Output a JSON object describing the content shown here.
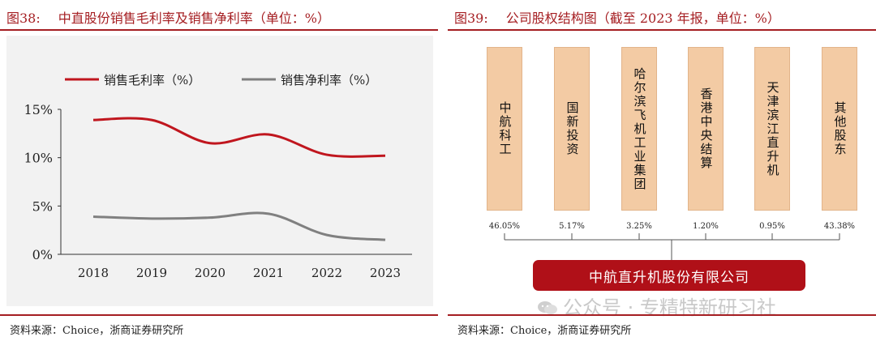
{
  "left_figure": {
    "number": "图38:",
    "title": "中直股份销售毛利率及销售净利率（单位：%）",
    "source": "资料来源：Choice，浙商证券研究所"
  },
  "right_figure": {
    "number": "图39:",
    "title": "公司股权结构图（截至 2023 年报，单位：%）",
    "source": "资料来源：Choice，浙商证券研究所",
    "shareholders": [
      {
        "name": "中航科工",
        "percent": "46.05%"
      },
      {
        "name": "国新投资",
        "percent": "5.17%"
      },
      {
        "name": "哈尔滨飞机工业集团",
        "percent": "3.25%"
      },
      {
        "name": "香港中央结算",
        "percent": "1.20%"
      },
      {
        "name": "天津滨江直升机",
        "percent": "0.95%"
      },
      {
        "name": "其他股东",
        "percent": "43.38%"
      }
    ],
    "company": "中航直升机股份有限公司",
    "watermark": "公众号 · 专精特新研习社"
  },
  "chart_data": {
    "type": "line",
    "title": "中直股份销售毛利率及销售净利率（单位：%）",
    "categories": [
      "2018",
      "2019",
      "2020",
      "2021",
      "2022",
      "2023"
    ],
    "series": [
      {
        "name": "销售毛利率（%）",
        "color": "#c0161e",
        "values": [
          13.9,
          13.9,
          11.5,
          12.4,
          10.3,
          10.2
        ]
      },
      {
        "name": "销售净利率（%）",
        "color": "#808080",
        "values": [
          3.9,
          3.7,
          3.8,
          4.2,
          2.0,
          1.5
        ]
      }
    ],
    "yticks": [
      "0%",
      "5%",
      "10%",
      "15%"
    ],
    "ylim": [
      0,
      15
    ],
    "legend": "top",
    "grid": false
  }
}
